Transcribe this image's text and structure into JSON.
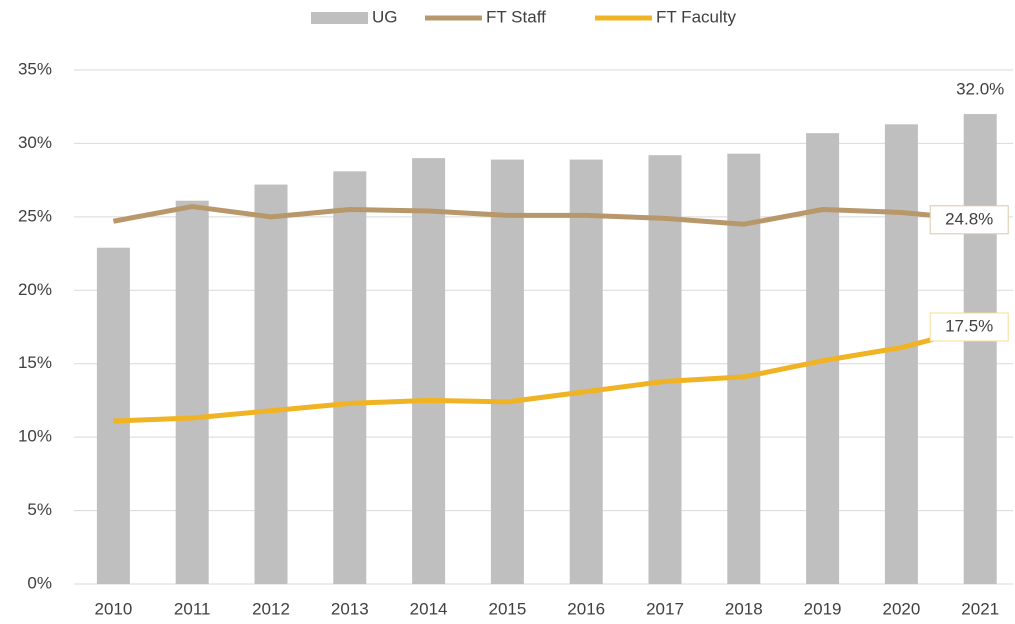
{
  "chart_data": {
    "type": "bar-line",
    "categories": [
      "2010",
      "2011",
      "2012",
      "2013",
      "2014",
      "2015",
      "2016",
      "2017",
      "2018",
      "2019",
      "2020",
      "2021"
    ],
    "series": [
      {
        "name": "UG",
        "type": "bar",
        "color": "#bfbfbf",
        "values": [
          22.9,
          26.1,
          27.2,
          28.1,
          29.0,
          28.9,
          28.9,
          29.2,
          29.3,
          30.7,
          31.3,
          32.0
        ],
        "value_labels": [
          null,
          null,
          null,
          null,
          null,
          null,
          null,
          null,
          null,
          null,
          null,
          "32.0%"
        ]
      },
      {
        "name": "FT Staff",
        "type": "line",
        "color": "#b8986a",
        "values": [
          24.7,
          25.7,
          25.0,
          25.5,
          25.4,
          25.1,
          25.1,
          24.9,
          24.5,
          25.5,
          25.3,
          24.8
        ],
        "value_labels": [
          null,
          null,
          null,
          null,
          null,
          null,
          null,
          null,
          null,
          null,
          null,
          "24.8%"
        ]
      },
      {
        "name": "FT Faculty",
        "type": "line",
        "color": "#f0b323",
        "values": [
          11.1,
          11.3,
          11.8,
          12.3,
          12.5,
          12.4,
          13.1,
          13.8,
          14.1,
          15.2,
          16.1,
          17.5
        ],
        "value_labels": [
          null,
          null,
          null,
          null,
          null,
          null,
          null,
          null,
          null,
          null,
          null,
          "17.5%"
        ]
      }
    ],
    "ylim": [
      0,
      35
    ],
    "yticks": [
      {
        "value": 0,
        "label": "0%"
      },
      {
        "value": 5,
        "label": "5%"
      },
      {
        "value": 10,
        "label": "10%"
      },
      {
        "value": 15,
        "label": "15%"
      },
      {
        "value": 20,
        "label": "20%"
      },
      {
        "value": 25,
        "label": "25%"
      },
      {
        "value": 30,
        "label": "30%"
      },
      {
        "value": 35,
        "label": "35%"
      }
    ],
    "grid": true,
    "legend": "top"
  }
}
